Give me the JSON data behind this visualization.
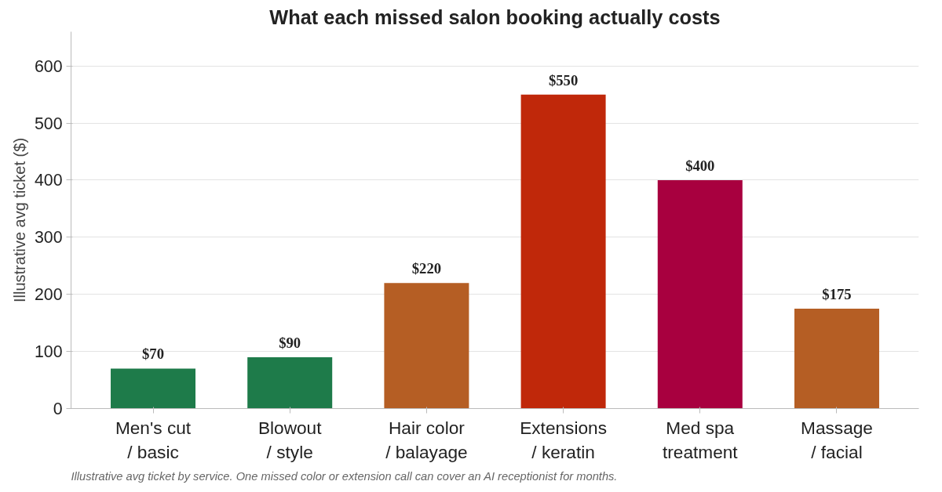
{
  "chart_data": {
    "type": "bar",
    "title": "What each missed salon booking actually costs",
    "ylabel": "Illustrative avg ticket ($)",
    "categories": [
      "Men's cut\n/ basic",
      "Blowout\n/ style",
      "Hair color\n/ balayage",
      "Extensions\n/ keratin",
      "Med spa\ntreatment",
      "Massage\n/ facial"
    ],
    "values": [
      70,
      90,
      220,
      550,
      400,
      175
    ],
    "colors": [
      "#1e7b4a",
      "#1e7b4a",
      "#b55e24",
      "#c0280a",
      "#a8003f",
      "#b55e24"
    ],
    "value_labels": [
      "$70",
      "$90",
      "$220",
      "$550",
      "$400",
      "$175"
    ],
    "ylim": [
      0,
      660
    ],
    "yticks": [
      0,
      100,
      200,
      300,
      400,
      500,
      600
    ],
    "grid": "y",
    "annotations": [
      "Illustrative avg ticket by service. One missed color or extension call can cover an AI receptionist for months."
    ]
  }
}
